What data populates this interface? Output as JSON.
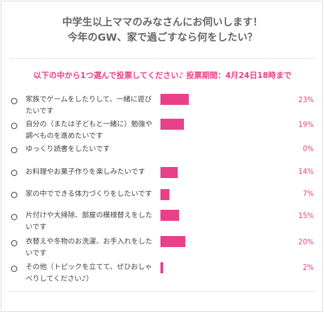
{
  "poll": {
    "title_line1": "中学生以上ママのみなさんにお伺いします！",
    "title_line2": "今年のGW、家で過ごすなら何をしたい？",
    "instruction": "以下の中から1つ選んで投票してください♪ 投票期間：4月24日18時まで",
    "accent_color": "#e8418a",
    "options": [
      {
        "label": "家族でゲームをしたりして、一緒に遊びたいです",
        "percent": 23,
        "percent_label": "23%"
      },
      {
        "label": "自分の（または子どもと一緒に）勉強や調べものを進めたいです",
        "percent": 19,
        "percent_label": "19%"
      },
      {
        "label": "ゆっくり読書をしたいです",
        "percent": 0,
        "percent_label": "0%"
      },
      {
        "label": "お料理やお菓子作りを楽しみたいです",
        "percent": 14,
        "percent_label": "14%"
      },
      {
        "label": "家の中でできる体力づくりをしたいです",
        "percent": 7,
        "percent_label": "7%"
      },
      {
        "label": "片付けや大掃除、部屋の模様替えをしたいです",
        "percent": 15,
        "percent_label": "15%"
      },
      {
        "label": "衣替えや冬物のお洗濯、お手入れをしたいです",
        "percent": 20,
        "percent_label": "20%"
      },
      {
        "label": "その他（トピックを立てて、ぜひおしゃべりしてください♪）",
        "percent": 2,
        "percent_label": "2%"
      }
    ]
  }
}
